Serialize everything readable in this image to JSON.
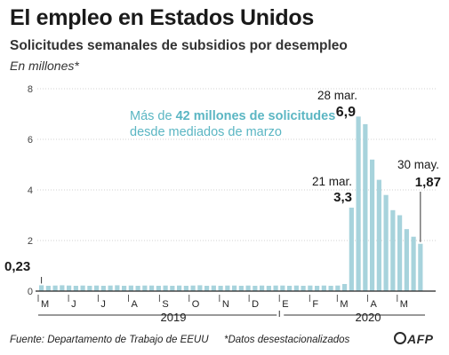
{
  "header": {
    "title": "El empleo en Estados Unidos",
    "subtitle": "Solicitudes semanales de subsidios por desempleo",
    "unit": "En millones*"
  },
  "callout": {
    "part1": "Más de ",
    "bold": "42 millones de solicitudes",
    "line2": "desde mediados de marzo"
  },
  "footer": {
    "source": "Fuente: Departamento de Trabajo de EEUU",
    "note": "*Datos desestacionalizados",
    "logo": "AFP"
  },
  "colors": {
    "bar": "#a7d3dc",
    "callout": "#5bb6c3",
    "axis": "#222222",
    "grid": "#d0d0d0"
  },
  "chart_data": {
    "type": "bar",
    "title": "Solicitudes semanales de subsidios por desempleo",
    "ylabel": "En millones*",
    "ylim": [
      0,
      8
    ],
    "yticks": [
      "0",
      "2",
      "4",
      "6",
      "8"
    ],
    "months": [
      "M",
      "J",
      "J",
      "A",
      "S",
      "O",
      "N",
      "D",
      "E",
      "F",
      "M",
      "A",
      "M"
    ],
    "years": [
      "2019",
      "2020"
    ],
    "values": [
      0.23,
      0.21,
      0.22,
      0.23,
      0.22,
      0.21,
      0.22,
      0.21,
      0.22,
      0.21,
      0.22,
      0.23,
      0.21,
      0.22,
      0.21,
      0.22,
      0.22,
      0.21,
      0.22,
      0.21,
      0.22,
      0.21,
      0.22,
      0.23,
      0.21,
      0.22,
      0.21,
      0.22,
      0.22,
      0.21,
      0.22,
      0.21,
      0.22,
      0.21,
      0.22,
      0.22,
      0.21,
      0.22,
      0.21,
      0.22,
      0.21,
      0.22,
      0.21,
      0.22,
      0.28,
      3.3,
      6.9,
      6.6,
      5.2,
      4.4,
      3.8,
      3.2,
      3.0,
      2.45,
      2.15,
      1.87
    ],
    "annotations": [
      {
        "date": "",
        "value": "0,23",
        "index": 0
      },
      {
        "date": "21 mar.",
        "value": "3,3",
        "index": 45
      },
      {
        "date": "28 mar.",
        "value": "6,9",
        "index": 46
      },
      {
        "date": "30 may.",
        "value": "1,87",
        "index": 55
      }
    ]
  }
}
